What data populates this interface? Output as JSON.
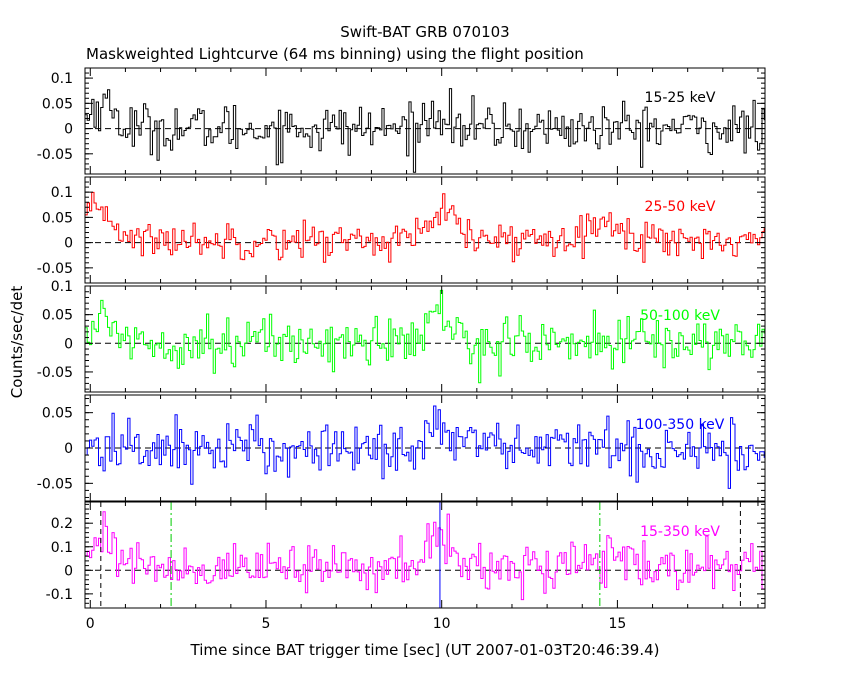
{
  "title": "Swift-BAT GRB 070103",
  "subtitle": "Maskweighted Lightcurve (64 ms binning) using the flight position",
  "ylabel": "Counts/sec/det",
  "xlabel": "Time since BAT trigger time [sec] (UT 2007-01-03T20:46:39.4)",
  "chart_data": {
    "type": "line",
    "xlim": [
      -0.15,
      19.2
    ],
    "x_ticks": [
      0,
      5,
      10,
      15
    ],
    "x_tick_labels": [
      "0",
      "5",
      "10",
      "15"
    ],
    "bin_seconds": 0.064,
    "series": [
      {
        "name": "15-25 keV",
        "color": "#000000",
        "ylim": [
          -0.09,
          0.12
        ],
        "y_ticks": [
          -0.05,
          0,
          0.05,
          0.1
        ],
        "y_tick_labels": [
          "-0.05",
          "0",
          "0.05",
          "0.1"
        ],
        "baseline": 0.0,
        "noise": 0.025,
        "pulses": [
          {
            "t": 0.3,
            "amp": 0.05,
            "width": 0.35
          },
          {
            "t": 9.9,
            "amp": 0.04,
            "width": 0.25
          }
        ]
      },
      {
        "name": "25-50 keV",
        "color": "#ff0000",
        "ylim": [
          -0.08,
          0.13
        ],
        "y_ticks": [
          -0.05,
          0,
          0.05,
          0.1
        ],
        "y_tick_labels": [
          "-0.05",
          "0",
          "0.05",
          "0.1"
        ],
        "baseline": 0.005,
        "noise": 0.018,
        "pulses": [
          {
            "t": 0.25,
            "amp": 0.06,
            "width": 0.4
          },
          {
            "t": 10.0,
            "amp": 0.055,
            "width": 0.35
          },
          {
            "t": 14.3,
            "amp": 0.03,
            "width": 0.7
          }
        ]
      },
      {
        "name": "50-100 keV",
        "color": "#00ff00",
        "ylim": [
          -0.085,
          0.1
        ],
        "y_ticks": [
          -0.05,
          0,
          0.05,
          0.1
        ],
        "y_tick_labels": [
          "-0.05",
          "0",
          "0.05",
          "0.1"
        ],
        "baseline": 0.002,
        "noise": 0.022,
        "pulses": [
          {
            "t": 0.3,
            "amp": 0.03,
            "width": 0.5
          },
          {
            "t": 9.9,
            "amp": 0.05,
            "width": 0.3
          }
        ]
      },
      {
        "name": "100-350 keV",
        "color": "#0000ff",
        "ylim": [
          -0.075,
          0.075
        ],
        "y_ticks": [
          -0.05,
          0,
          0.05
        ],
        "y_tick_labels": [
          "-0.05",
          "0",
          "0.05"
        ],
        "baseline": 0.0,
        "noise": 0.02,
        "pulses": [
          {
            "t": 10.0,
            "amp": 0.03,
            "width": 0.4
          }
        ]
      },
      {
        "name": "15-350 keV",
        "color": "#ff00ff",
        "ylim": [
          -0.16,
          0.29
        ],
        "y_ticks": [
          -0.1,
          0,
          0.1,
          0.2
        ],
        "y_tick_labels": [
          "-0.1",
          "0",
          "0.1",
          "0.2"
        ],
        "baseline": 0.01,
        "noise": 0.05,
        "pulses": [
          {
            "t": 0.3,
            "amp": 0.14,
            "width": 0.4
          },
          {
            "t": 9.9,
            "amp": 0.16,
            "width": 0.3
          },
          {
            "t": 14.5,
            "amp": 0.06,
            "width": 0.5
          }
        ]
      }
    ],
    "markers": [
      {
        "panel": 4,
        "t": 2.3,
        "style": "green-dashdot",
        "color": "#00cc00"
      },
      {
        "panel": 4,
        "t": 14.5,
        "style": "green-dashdot",
        "color": "#00cc00"
      },
      {
        "panel": 4,
        "t": 9.95,
        "style": "solid",
        "color": "#0000ff"
      },
      {
        "panel": 4,
        "t": 18.5,
        "style": "dashed",
        "color": "#000000"
      },
      {
        "panel": 4,
        "t": 0.3,
        "style": "dashed",
        "color": "#000000"
      }
    ]
  }
}
